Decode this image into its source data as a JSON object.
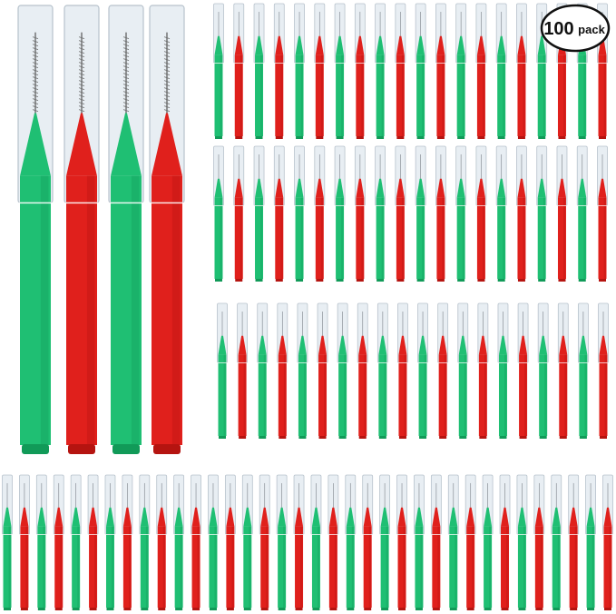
{
  "badge": {
    "number": "100",
    "unit": "pack"
  },
  "colors": {
    "green": "#1fbf73",
    "green_dark": "#119a58",
    "red": "#e0201c",
    "red_dark": "#b51410",
    "cap": "#e8eef3",
    "cap_edge": "#b7c2cc"
  },
  "products": {
    "large_brushes": [
      {
        "color": "green"
      },
      {
        "color": "red"
      },
      {
        "color": "green"
      },
      {
        "color": "red"
      }
    ],
    "rows": [
      {
        "count": 20
      },
      {
        "count": 20
      },
      {
        "count": 20
      },
      {
        "count": 36
      }
    ]
  }
}
